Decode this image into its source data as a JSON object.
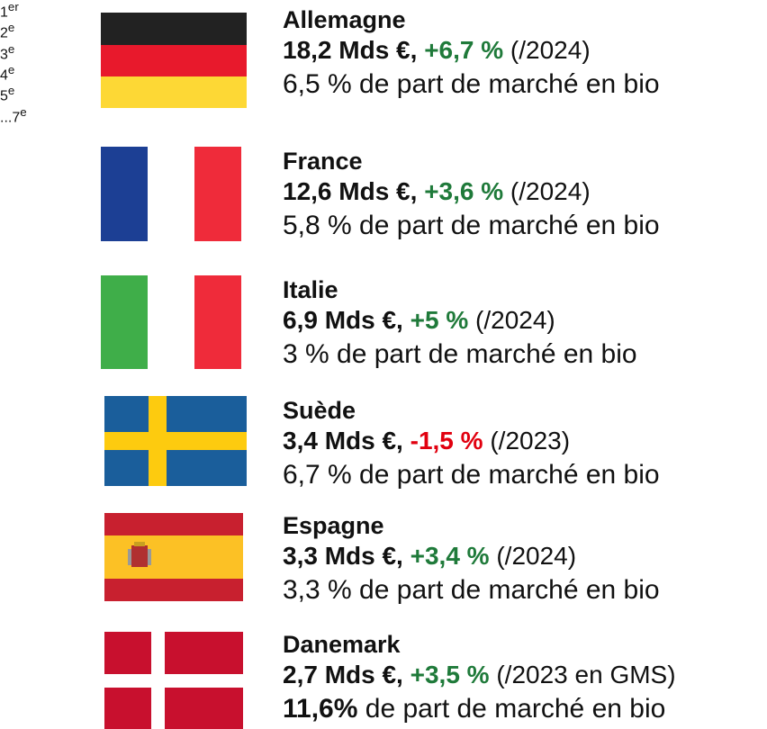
{
  "items": [
    {
      "rank": "1",
      "rank_suffix": "er",
      "country": "Allemagne",
      "amount": "18,2 Mds €,",
      "change": "+6,7 %",
      "change_trend": "up",
      "reference": "(/2024)",
      "share": "6,5 % de part de marché en bio",
      "share_bold": "",
      "share_rest": ""
    },
    {
      "rank": "2",
      "rank_suffix": "e",
      "country": "France",
      "amount": "12,6 Mds €,",
      "change": "+3,6 %",
      "change_trend": "up",
      "reference": "(/2024)",
      "share": "5,8 % de part de marché en bio"
    },
    {
      "rank": "3",
      "rank_suffix": "e",
      "country": "Italie",
      "amount": "6,9 Mds €,",
      "change": "+5 %",
      "change_trend": "up",
      "reference": "(/2024)",
      "share": "3 % de part de marché en bio"
    },
    {
      "rank": "4",
      "rank_suffix": "e",
      "country": "Suède",
      "amount": "3,4 Mds €,",
      "change": "-1,5 %",
      "change_trend": "down",
      "reference": "(/2023)",
      "share": "6,7 % de part de marché en bio"
    },
    {
      "rank": "5",
      "rank_suffix": "e",
      "country": "Espagne",
      "amount": "3,3 Mds €,",
      "change": "+3,4 %",
      "change_trend": "up",
      "reference": "(/2024)",
      "share": "3,3 % de part de marché en bio"
    },
    {
      "rank": "...7",
      "rank_suffix": "e",
      "country": "Danemark",
      "amount": "2,7 Mds €,",
      "change": "+3,5 %",
      "change_trend": "up",
      "reference": "(/2023 en GMS)",
      "share_bold": "11,6%",
      "share_rest": "de part de marché en bio"
    }
  ],
  "colors": {
    "up": "#1f7a3a",
    "down": "#e1000f"
  }
}
